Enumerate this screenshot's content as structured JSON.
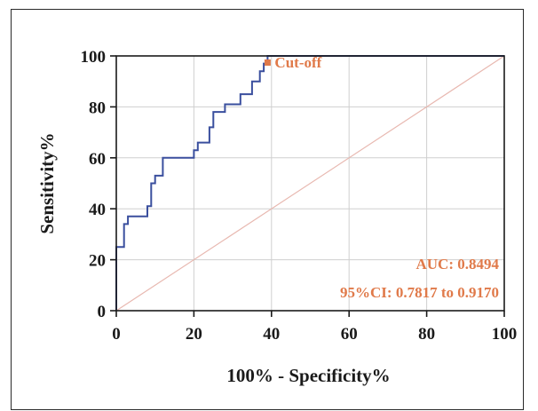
{
  "chart_data": {
    "type": "line",
    "xlabel": "100% - Specificity%",
    "ylabel": "Sensitivity%",
    "xlim": [
      0,
      100
    ],
    "ylim": [
      0,
      100
    ],
    "x_ticks": [
      "0",
      "20",
      "40",
      "60",
      "80",
      "100"
    ],
    "y_ticks": [
      "0",
      "20",
      "40",
      "60",
      "80",
      "100"
    ],
    "grid": true,
    "series": [
      {
        "style": "step",
        "color": "#3a4f9e",
        "points": [
          [
            0,
            0
          ],
          [
            0,
            25
          ],
          [
            2,
            25
          ],
          [
            2,
            34
          ],
          [
            3,
            34
          ],
          [
            3,
            37
          ],
          [
            8,
            37
          ],
          [
            8,
            41
          ],
          [
            9,
            41
          ],
          [
            9,
            50
          ],
          [
            10,
            50
          ],
          [
            10,
            53
          ],
          [
            12,
            53
          ],
          [
            12,
            60
          ],
          [
            20,
            60
          ],
          [
            20,
            63
          ],
          [
            21,
            63
          ],
          [
            21,
            66
          ],
          [
            24,
            66
          ],
          [
            24,
            72
          ],
          [
            25,
            72
          ],
          [
            25,
            78
          ],
          [
            28,
            78
          ],
          [
            28,
            81
          ],
          [
            32,
            81
          ],
          [
            32,
            85
          ],
          [
            35,
            85
          ],
          [
            35,
            90
          ],
          [
            37,
            90
          ],
          [
            37,
            94
          ],
          [
            38,
            94
          ],
          [
            38,
            97
          ],
          [
            39,
            97
          ],
          [
            39,
            100
          ],
          [
            100,
            100
          ]
        ]
      },
      {
        "style": "reference",
        "color": "#e8b8b0",
        "points": [
          [
            0,
            0
          ],
          [
            100,
            100
          ]
        ]
      }
    ],
    "annotations": {
      "cutoff_label": "Cut-off",
      "cutoff_point": [
        39,
        100
      ],
      "auc_label": "AUC: 0.8494",
      "ci_label": "95%CI: 0.7817 to 0.9170",
      "color": "#e07a4a"
    }
  }
}
